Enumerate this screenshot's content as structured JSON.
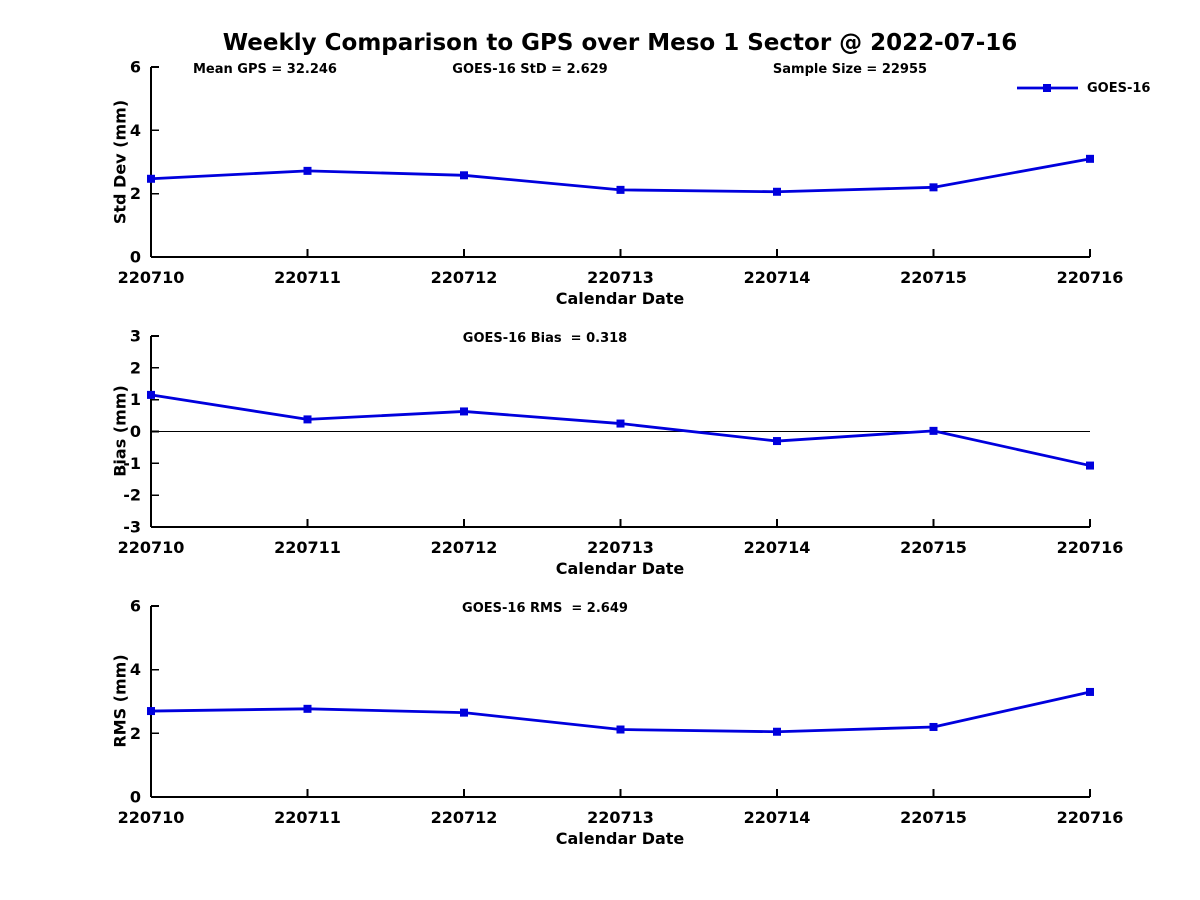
{
  "title": "Weekly Comparison to GPS over Meso 1 Sector @ 2022-07-16",
  "legend": {
    "label": "GOES-16"
  },
  "colors": {
    "series": "#0000dd",
    "axis": "#000000",
    "text": "#000000",
    "background": "#ffffff"
  },
  "chart_data": [
    {
      "type": "line",
      "title": "Weekly Comparison to GPS over Meso 1 Sector @ 2022-07-16",
      "annotations": [
        "Mean GPS = 32.246",
        "GOES-16 StD = 2.629",
        "Sample Size = 22955"
      ],
      "categories": [
        "220710",
        "220711",
        "220712",
        "220713",
        "220714",
        "220715",
        "220716"
      ],
      "series": [
        {
          "name": "GOES-16",
          "values": [
            2.47,
            2.72,
            2.58,
            2.12,
            2.06,
            2.2,
            3.1
          ]
        }
      ],
      "xlabel": "Calendar Date",
      "ylabel": "Std Dev (mm)",
      "ylim": [
        0,
        6
      ],
      "yticks": [
        0,
        2,
        4,
        6
      ],
      "zero_line": false,
      "grid": false,
      "legend_position": "top-right",
      "marker": "square"
    },
    {
      "type": "line",
      "annotations": [
        "GOES-16 Bias  = 0.318"
      ],
      "categories": [
        "220710",
        "220711",
        "220712",
        "220713",
        "220714",
        "220715",
        "220716"
      ],
      "series": [
        {
          "name": "GOES-16",
          "values": [
            1.15,
            0.38,
            0.63,
            0.25,
            -0.3,
            0.02,
            -1.07
          ]
        }
      ],
      "xlabel": "Calendar Date",
      "ylabel": "Bias (mm)",
      "ylim": [
        -3,
        3
      ],
      "yticks": [
        -3,
        -2,
        -1,
        0,
        1,
        2,
        3
      ],
      "zero_line": true,
      "grid": false,
      "marker": "square"
    },
    {
      "type": "line",
      "annotations": [
        "GOES-16 RMS  = 2.649"
      ],
      "categories": [
        "220710",
        "220711",
        "220712",
        "220713",
        "220714",
        "220715",
        "220716"
      ],
      "series": [
        {
          "name": "GOES-16",
          "values": [
            2.7,
            2.77,
            2.65,
            2.12,
            2.05,
            2.2,
            3.3
          ]
        }
      ],
      "xlabel": "Calendar Date",
      "ylabel": "RMS (mm)",
      "ylim": [
        0,
        6
      ],
      "yticks": [
        0,
        2,
        4,
        6
      ],
      "zero_line": false,
      "grid": false,
      "marker": "square"
    }
  ]
}
